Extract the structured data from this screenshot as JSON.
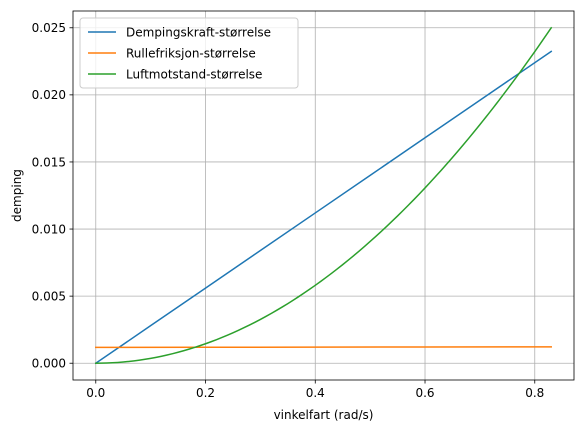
{
  "chart_data": {
    "type": "line",
    "title": "",
    "xlabel": "vinkelfart (rad/s)",
    "ylabel": "demping",
    "xlim": [
      -0.0415,
      0.8715
    ],
    "ylim": [
      -0.00125,
      0.02625
    ],
    "xticks": [
      0.0,
      0.2,
      0.4,
      0.6,
      0.8
    ],
    "xtick_labels": [
      "0.0",
      "0.2",
      "0.4",
      "0.6",
      "0.8"
    ],
    "yticks": [
      0.0,
      0.005,
      0.01,
      0.015,
      0.02,
      0.025
    ],
    "ytick_labels": [
      "0.000",
      "0.005",
      "0.010",
      "0.015",
      "0.020",
      "0.025"
    ],
    "grid": true,
    "legend_position": "top-left",
    "series": [
      {
        "name": "Dempingskraft-størrelse",
        "color": "#1f77b4",
        "x": [
          0.0,
          0.1,
          0.2,
          0.3,
          0.4,
          0.5,
          0.6,
          0.7,
          0.83
        ],
        "y": [
          0.0,
          0.0028,
          0.0056,
          0.0084,
          0.0112,
          0.014,
          0.0168,
          0.0196,
          0.02324
        ]
      },
      {
        "name": "Rullefriksjon-størrelse",
        "color": "#ff7f0e",
        "x": [
          0.0,
          0.2,
          0.4,
          0.6,
          0.83
        ],
        "y": [
          0.00118,
          0.00119,
          0.0012,
          0.00121,
          0.00122
        ]
      },
      {
        "name": "Luftmotstand-størrelse",
        "color": "#2ca02c",
        "x": [
          0.0,
          0.1,
          0.2,
          0.3,
          0.4,
          0.5,
          0.6,
          0.7,
          0.75,
          0.83
        ],
        "y": [
          0.0,
          0.000363,
          0.001452,
          0.003266,
          0.005807,
          0.009074,
          0.013066,
          0.017785,
          0.020416,
          0.025
        ]
      }
    ]
  }
}
